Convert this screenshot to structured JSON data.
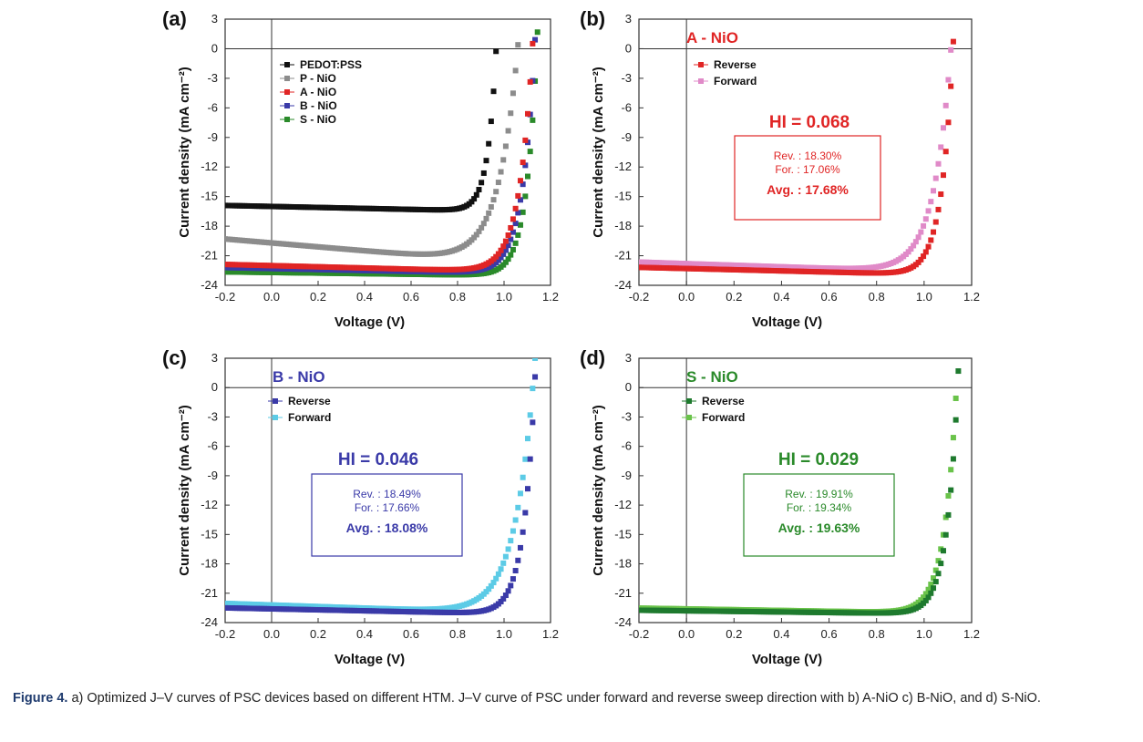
{
  "caption": {
    "label": "Figure 4.",
    "text": " a) Optimized J–V curves of PSC devices based on different HTM. J–V curve of PSC under forward and reverse sweep direction with b) A-NiO c) B-NiO, and d) S-NiO."
  },
  "chart_data": [
    {
      "panel_label": "(a)",
      "type": "scatter",
      "title": "",
      "xlabel": "Voltage (V)",
      "ylabel": "Current density (mA cm⁻²)",
      "xlim": [
        -0.2,
        1.2
      ],
      "ylim": [
        -24,
        3
      ],
      "x_ticks": [
        "-0.2",
        "0.0",
        "0.2",
        "0.4",
        "0.6",
        "0.8",
        "1.0",
        "1.2"
      ],
      "y_ticks": [
        "3",
        "0",
        "-3",
        "-6",
        "-9",
        "-12",
        "-15",
        "-18",
        "-21",
        "-24"
      ],
      "legend_position": "upper-left",
      "series": [
        {
          "name": "PEDOT:PSS",
          "color": "#111111",
          "jsc": -16.0,
          "voc": 0.965,
          "slope": -0.5,
          "n": 1.4
        },
        {
          "name": "P - NiO",
          "color": "#8c8c8c",
          "jsc": -19.7,
          "voc": 1.05,
          "slope": -2.0,
          "n": 3.2
        },
        {
          "name": "A - NiO",
          "color": "#e02525",
          "jsc": -22.0,
          "voc": 1.12,
          "slope": -0.6,
          "n": 2.2
        },
        {
          "name": "B - NiO",
          "color": "#3a3aa8",
          "jsc": -22.3,
          "voc": 1.13,
          "slope": -0.5,
          "n": 2.1
        },
        {
          "name": "S - NiO",
          "color": "#2a8a2a",
          "jsc": -22.7,
          "voc": 1.14,
          "slope": -0.3,
          "n": 1.8
        }
      ]
    },
    {
      "panel_label": "(b)",
      "type": "scatter",
      "title": "A - NiO",
      "title_color": "#e02525",
      "xlabel": "Voltage (V)",
      "ylabel": "Current density (mA cm⁻²)",
      "xlim": [
        -0.2,
        1.2
      ],
      "ylim": [
        -24,
        3
      ],
      "x_ticks": [
        "-0.2",
        "0.0",
        "0.2",
        "0.4",
        "0.6",
        "0.8",
        "1.0",
        "1.2"
      ],
      "y_ticks": [
        "3",
        "0",
        "-3",
        "-6",
        "-9",
        "-12",
        "-15",
        "-18",
        "-21",
        "-24"
      ],
      "legend_position": "upper-left",
      "series": [
        {
          "name": "Reverse",
          "color": "#e02525",
          "jsc": -22.3,
          "voc": 1.12,
          "slope": -0.6,
          "n": 1.9
        },
        {
          "name": "Forward",
          "color": "#e08ac8",
          "jsc": -21.8,
          "voc": 1.11,
          "slope": -0.8,
          "n": 2.8
        }
      ],
      "annotation": {
        "hi": "HI = 0.068",
        "rev": "Rev. : 18.30%",
        "for": "For. : 17.06%",
        "avg": "Avg. : 17.68%",
        "color": "#e02525"
      }
    },
    {
      "panel_label": "(c)",
      "type": "scatter",
      "title": "B - NiO",
      "title_color": "#3a3aa8",
      "xlabel": "Voltage (V)",
      "ylabel": "Current density (mA cm⁻²)",
      "xlim": [
        -0.2,
        1.2
      ],
      "ylim": [
        -24,
        3
      ],
      "x_ticks": [
        "-0.2",
        "0.0",
        "0.2",
        "0.4",
        "0.6",
        "0.8",
        "1.0",
        "1.2"
      ],
      "y_ticks": [
        "3",
        "0",
        "-3",
        "-6",
        "-9",
        "-12",
        "-15",
        "-18",
        "-21",
        "-24"
      ],
      "legend_position": "upper-left",
      "series": [
        {
          "name": "Reverse",
          "color": "#3a3aa8",
          "jsc": -22.6,
          "voc": 1.13,
          "slope": -0.5,
          "n": 1.9
        },
        {
          "name": "Forward",
          "color": "#5ccbe6",
          "jsc": -22.2,
          "voc": 1.12,
          "slope": -0.8,
          "n": 3.2
        }
      ],
      "annotation": {
        "hi": "HI = 0.046",
        "rev": "Rev. : 18.49%",
        "for": "For. : 17.66%",
        "avg": "Avg. : 18.08%",
        "color": "#3a3aa8"
      }
    },
    {
      "panel_label": "(d)",
      "type": "scatter",
      "title": "S - NiO",
      "title_color": "#2a8a2a",
      "xlabel": "Voltage (V)",
      "ylabel": "Current density (mA cm⁻²)",
      "xlim": [
        -0.2,
        1.2
      ],
      "ylim": [
        -24,
        3
      ],
      "x_ticks": [
        "-0.2",
        "0.0",
        "0.2",
        "0.4",
        "0.6",
        "0.8",
        "1.0",
        "1.2"
      ],
      "y_ticks": [
        "3",
        "0",
        "-3",
        "-6",
        "-9",
        "-12",
        "-15",
        "-18",
        "-21",
        "-24"
      ],
      "legend_position": "upper-left",
      "series": [
        {
          "name": "Reverse",
          "color": "#1e7a2e",
          "jsc": -22.8,
          "voc": 1.14,
          "slope": -0.3,
          "n": 1.8
        },
        {
          "name": "Forward",
          "color": "#6ac34a",
          "jsc": -22.6,
          "voc": 1.135,
          "slope": -0.4,
          "n": 2.0
        }
      ],
      "annotation": {
        "hi": "HI = 0.029",
        "rev": "Rev. : 19.91%",
        "for": "For. : 19.34%",
        "avg": "Avg. : 19.63%",
        "color": "#2a8a2a"
      }
    }
  ]
}
